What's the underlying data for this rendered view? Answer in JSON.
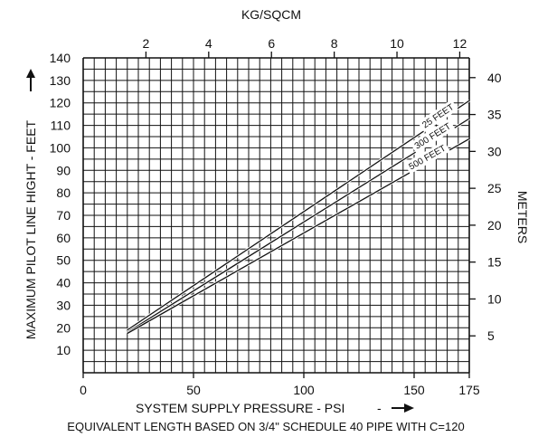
{
  "chart_data": {
    "type": "line",
    "title": "",
    "xlabel": "SYSTEM SUPPLY PRESSURE - PSI",
    "ylabel": "MAXIMUM PILOT LINE HIGHT - FEET",
    "xlabel_top": "KG/SQCM",
    "ylabel_right": "METERS",
    "footnote": "EQUIVALENT LENGTH BASED ON 3/4\" SCHEDULE 40 PIPE WITH C=120",
    "xlim": [
      0,
      175
    ],
    "ylim": [
      0,
      140
    ],
    "grid": true,
    "x_ticks": [
      "0",
      "50",
      "100",
      "150",
      "175"
    ],
    "y_ticks": [
      "10",
      "20",
      "30",
      "40",
      "50",
      "60",
      "70",
      "80",
      "90",
      "100",
      "110",
      "120",
      "130",
      "140"
    ],
    "top_ticks": [
      "2",
      "4",
      "6",
      "8",
      "10",
      "12"
    ],
    "right_ticks": [
      "5",
      "10",
      "15",
      "20",
      "25",
      "30",
      "35",
      "40"
    ],
    "series": [
      {
        "name": "25 FEET",
        "x": [
          20,
          175
        ],
        "y": [
          19,
          121
        ]
      },
      {
        "name": "300 FEET",
        "x": [
          20,
          175
        ],
        "y": [
          18,
          113
        ]
      },
      {
        "name": "500 FEET",
        "x": [
          20,
          175
        ],
        "y": [
          17.5,
          104
        ]
      }
    ],
    "line_color": "#111111",
    "grid_color": "#111111"
  }
}
